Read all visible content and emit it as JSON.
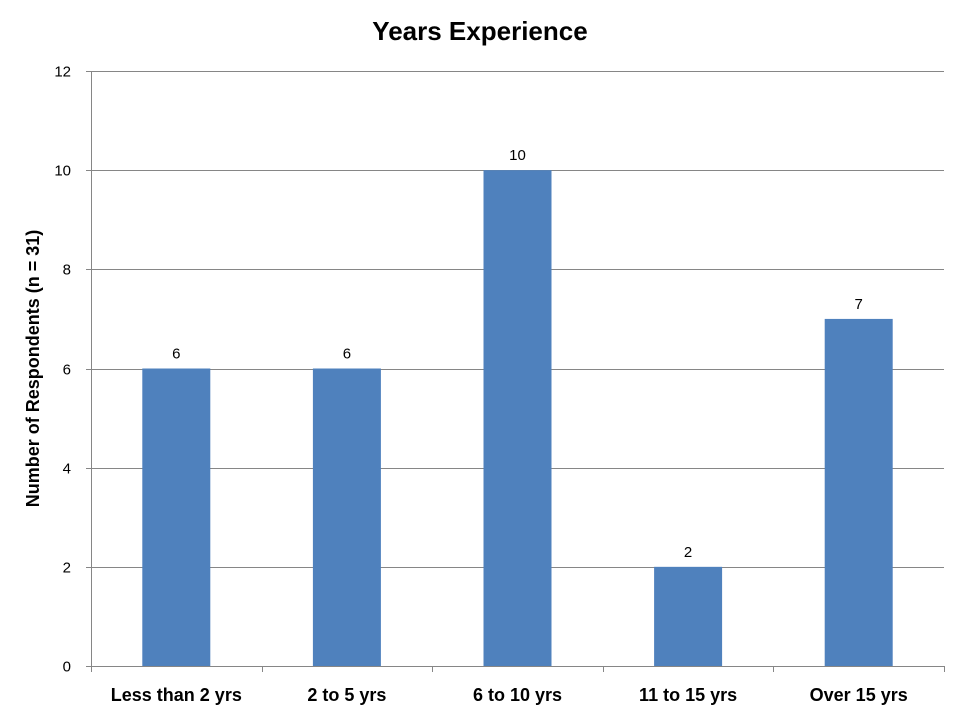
{
  "chart_data": {
    "type": "bar",
    "title": "Years Experience",
    "xlabel": "",
    "ylabel": "Number of Respondents (n = 31)",
    "categories": [
      "Less than 2 yrs",
      "2 to 5 yrs",
      "6 to 10 yrs",
      "11 to 15 yrs",
      "Over 15 yrs"
    ],
    "values": [
      6,
      6,
      10,
      2,
      7
    ],
    "data_labels": [
      "6",
      "6",
      "10",
      "2",
      "7"
    ],
    "ylim": [
      0,
      12
    ],
    "yticks": [
      0,
      2,
      4,
      6,
      8,
      10,
      12
    ],
    "grid": true,
    "legend": "none",
    "colors": {
      "bar": "#4F81BD",
      "grid": "#868686"
    }
  }
}
